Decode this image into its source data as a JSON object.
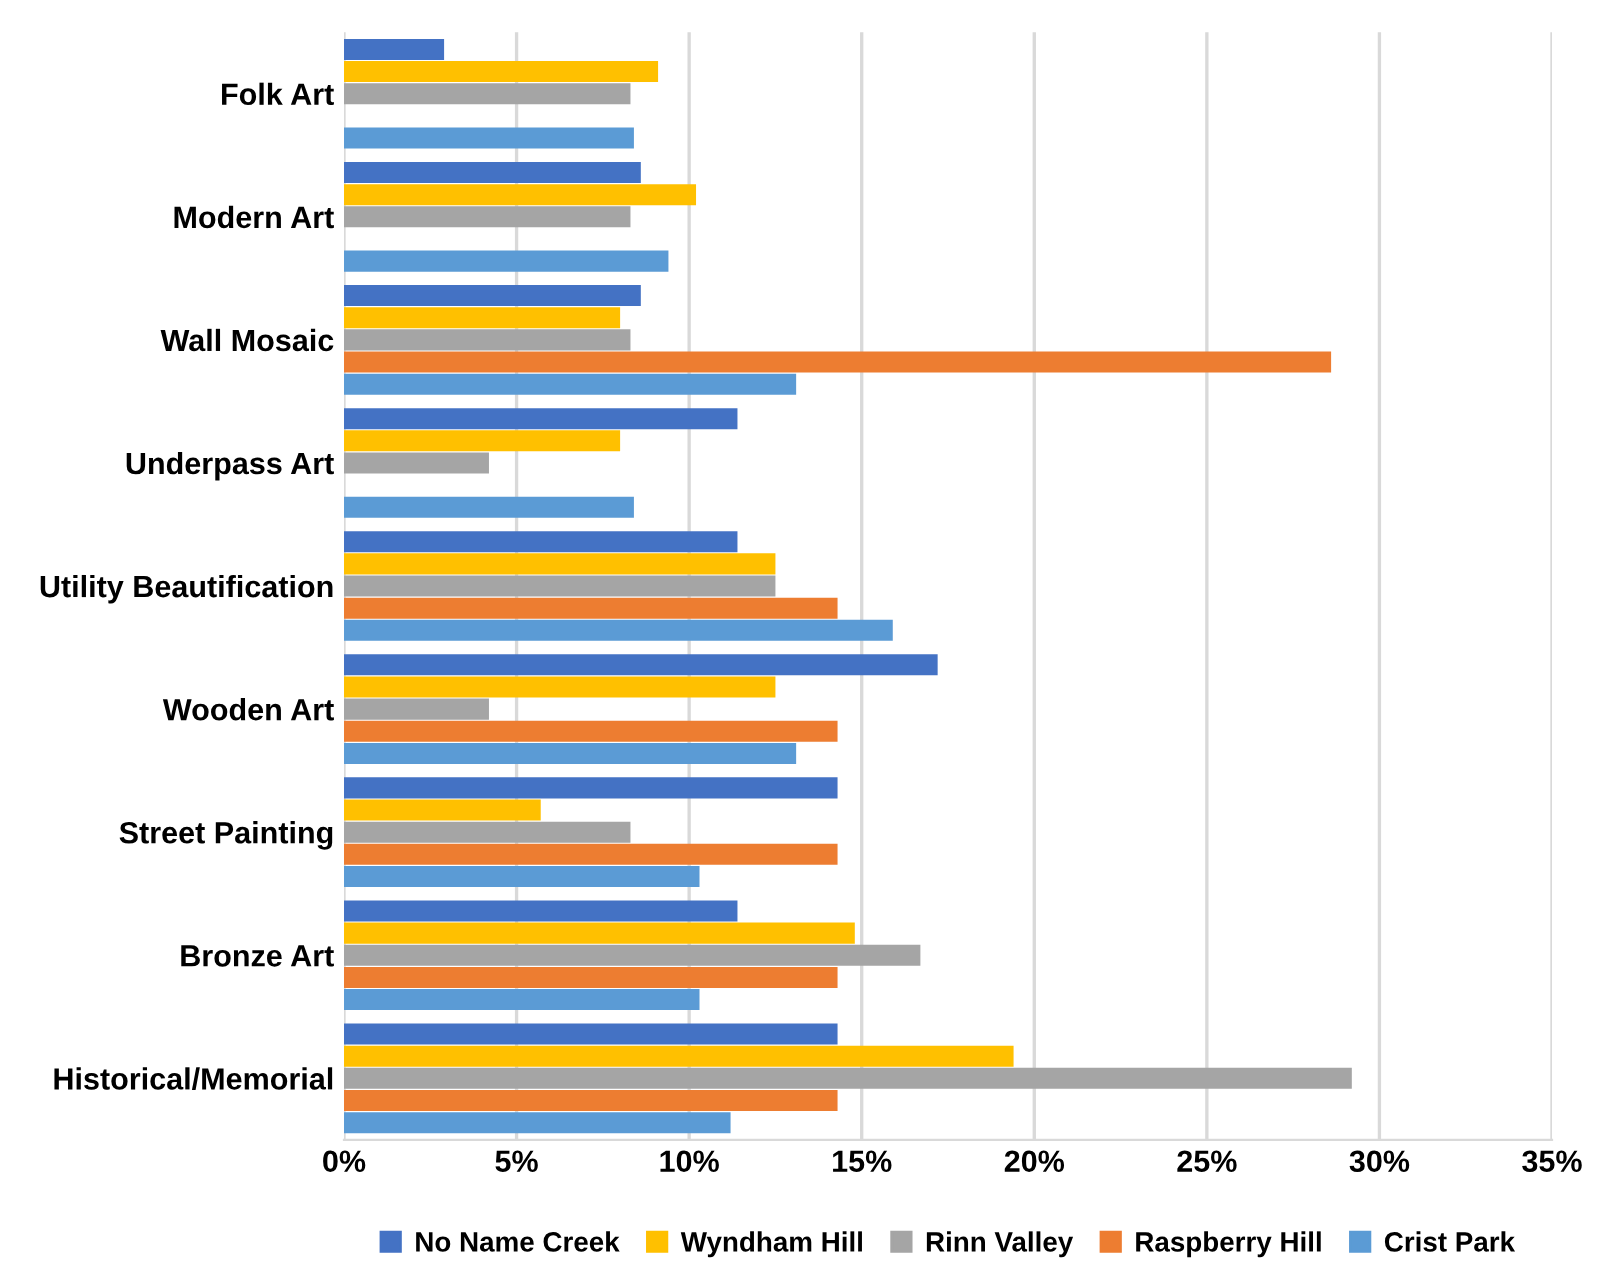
{
  "chart_data": {
    "type": "bar",
    "orientation": "horizontal",
    "categories": [
      "Folk Art",
      "Modern Art",
      "Wall Mosaic",
      "Underpass Art",
      "Utility Beautification",
      "Wooden Art",
      "Street Painting",
      "Bronze Art",
      "Historical/Memorial"
    ],
    "series": [
      {
        "name": "No Name Creek",
        "color": "#4472c4",
        "values": [
          2.9,
          8.6,
          8.6,
          11.4,
          11.4,
          17.2,
          14.3,
          11.4,
          14.3
        ]
      },
      {
        "name": "Wyndham Hill",
        "color": "#ffc000",
        "values": [
          9.1,
          10.2,
          8.0,
          8.0,
          12.5,
          12.5,
          5.7,
          14.8,
          19.4
        ]
      },
      {
        "name": "Rinn Valley",
        "color": "#a5a5a5",
        "values": [
          8.3,
          8.3,
          8.3,
          4.2,
          12.5,
          4.2,
          8.3,
          16.7,
          29.2
        ]
      },
      {
        "name": "Raspberry Hill",
        "color": "#ed7d31",
        "values": [
          0,
          0,
          28.6,
          0,
          14.3,
          14.3,
          14.3,
          14.3,
          14.3
        ]
      },
      {
        "name": "Crist Park",
        "color": "#5b9bd5",
        "values": [
          8.4,
          9.4,
          13.1,
          8.4,
          15.9,
          13.1,
          10.3,
          10.3,
          11.2
        ]
      }
    ],
    "xlim": [
      0,
      35
    ],
    "xticks": [
      {
        "value": 0,
        "label": "0%"
      },
      {
        "value": 5,
        "label": "5%"
      },
      {
        "value": 10,
        "label": "10%"
      },
      {
        "value": 15,
        "label": "15%"
      },
      {
        "value": 20,
        "label": "20%"
      },
      {
        "value": 25,
        "label": "25%"
      },
      {
        "value": 30,
        "label": "30%"
      },
      {
        "value": 35,
        "label": "35%"
      }
    ],
    "grid": "x",
    "legend": "bottom"
  }
}
